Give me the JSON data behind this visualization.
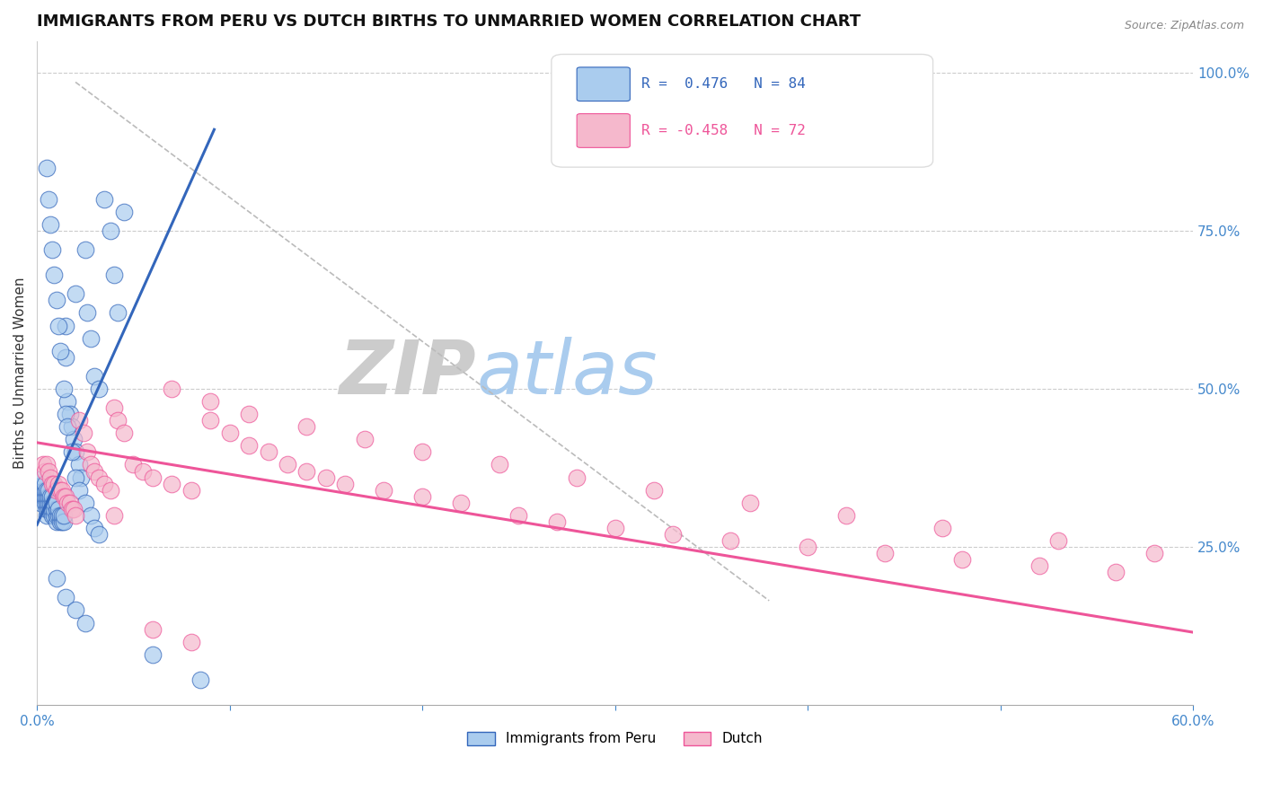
{
  "title": "IMMIGRANTS FROM PERU VS DUTCH BIRTHS TO UNMARRIED WOMEN CORRELATION CHART",
  "source_text": "Source: ZipAtlas.com",
  "xlabel_label": "Immigrants from Peru",
  "ylabel_label": "Births to Unmarried Women",
  "x_min": 0.0,
  "x_max": 0.6,
  "y_min": 0.0,
  "y_max": 1.05,
  "y_ticks_right": [
    0.25,
    0.5,
    0.75,
    1.0
  ],
  "y_tick_labels_right": [
    "25.0%",
    "50.0%",
    "75.0%",
    "100.0%"
  ],
  "legend_r1": "R =  0.476",
  "legend_n1": "N = 84",
  "legend_r2": "R = -0.458",
  "legend_n2": "N = 72",
  "scatter_blue_color": "#aaccee",
  "scatter_pink_color": "#f5b8cc",
  "trend_blue_color": "#3366bb",
  "trend_pink_color": "#ee5599",
  "ref_line_color": "#bbbbbb",
  "grid_color": "#cccccc",
  "axis_color": "#4488cc",
  "title_color": "#111111",
  "legend_r_color": "#3366bb",
  "legend_r2_color": "#ee5599",
  "blue_scatter_x": [
    0.002,
    0.003,
    0.003,
    0.003,
    0.003,
    0.004,
    0.004,
    0.004,
    0.004,
    0.005,
    0.005,
    0.005,
    0.005,
    0.005,
    0.006,
    0.006,
    0.006,
    0.006,
    0.007,
    0.007,
    0.007,
    0.008,
    0.008,
    0.008,
    0.008,
    0.009,
    0.009,
    0.009,
    0.01,
    0.01,
    0.01,
    0.01,
    0.011,
    0.011,
    0.012,
    0.012,
    0.013,
    0.013,
    0.014,
    0.014,
    0.015,
    0.015,
    0.016,
    0.017,
    0.018,
    0.019,
    0.02,
    0.02,
    0.022,
    0.023,
    0.025,
    0.026,
    0.028,
    0.03,
    0.032,
    0.035,
    0.038,
    0.04,
    0.042,
    0.045,
    0.005,
    0.006,
    0.007,
    0.008,
    0.009,
    0.01,
    0.011,
    0.012,
    0.014,
    0.015,
    0.016,
    0.018,
    0.02,
    0.022,
    0.025,
    0.028,
    0.03,
    0.032,
    0.01,
    0.015,
    0.02,
    0.025,
    0.06,
    0.085
  ],
  "blue_scatter_y": [
    0.32,
    0.33,
    0.34,
    0.35,
    0.36,
    0.32,
    0.33,
    0.34,
    0.35,
    0.3,
    0.31,
    0.32,
    0.33,
    0.34,
    0.31,
    0.32,
    0.33,
    0.34,
    0.31,
    0.32,
    0.33,
    0.3,
    0.31,
    0.32,
    0.33,
    0.3,
    0.31,
    0.32,
    0.29,
    0.3,
    0.31,
    0.32,
    0.3,
    0.31,
    0.29,
    0.3,
    0.29,
    0.3,
    0.29,
    0.3,
    0.55,
    0.6,
    0.48,
    0.46,
    0.44,
    0.42,
    0.4,
    0.65,
    0.38,
    0.36,
    0.72,
    0.62,
    0.58,
    0.52,
    0.5,
    0.8,
    0.75,
    0.68,
    0.62,
    0.78,
    0.85,
    0.8,
    0.76,
    0.72,
    0.68,
    0.64,
    0.6,
    0.56,
    0.5,
    0.46,
    0.44,
    0.4,
    0.36,
    0.34,
    0.32,
    0.3,
    0.28,
    0.27,
    0.2,
    0.17,
    0.15,
    0.13,
    0.08,
    0.04
  ],
  "pink_scatter_x": [
    0.003,
    0.004,
    0.005,
    0.006,
    0.007,
    0.008,
    0.009,
    0.01,
    0.011,
    0.012,
    0.013,
    0.014,
    0.015,
    0.016,
    0.017,
    0.018,
    0.019,
    0.02,
    0.022,
    0.024,
    0.026,
    0.028,
    0.03,
    0.032,
    0.035,
    0.038,
    0.04,
    0.042,
    0.045,
    0.05,
    0.055,
    0.06,
    0.07,
    0.08,
    0.09,
    0.1,
    0.11,
    0.12,
    0.13,
    0.14,
    0.15,
    0.16,
    0.18,
    0.2,
    0.22,
    0.25,
    0.27,
    0.3,
    0.33,
    0.36,
    0.4,
    0.44,
    0.48,
    0.52,
    0.56,
    0.07,
    0.09,
    0.11,
    0.14,
    0.17,
    0.2,
    0.24,
    0.28,
    0.32,
    0.37,
    0.42,
    0.47,
    0.53,
    0.58,
    0.04,
    0.06,
    0.08
  ],
  "pink_scatter_y": [
    0.38,
    0.37,
    0.38,
    0.37,
    0.36,
    0.35,
    0.35,
    0.34,
    0.35,
    0.34,
    0.34,
    0.33,
    0.33,
    0.32,
    0.32,
    0.31,
    0.31,
    0.3,
    0.45,
    0.43,
    0.4,
    0.38,
    0.37,
    0.36,
    0.35,
    0.34,
    0.47,
    0.45,
    0.43,
    0.38,
    0.37,
    0.36,
    0.35,
    0.34,
    0.45,
    0.43,
    0.41,
    0.4,
    0.38,
    0.37,
    0.36,
    0.35,
    0.34,
    0.33,
    0.32,
    0.3,
    0.29,
    0.28,
    0.27,
    0.26,
    0.25,
    0.24,
    0.23,
    0.22,
    0.21,
    0.5,
    0.48,
    0.46,
    0.44,
    0.42,
    0.4,
    0.38,
    0.36,
    0.34,
    0.32,
    0.3,
    0.28,
    0.26,
    0.24,
    0.3,
    0.12,
    0.1
  ],
  "blue_trend_x": [
    0.0,
    0.092
  ],
  "blue_trend_y": [
    0.285,
    0.91
  ],
  "pink_trend_x": [
    0.0,
    0.6
  ],
  "pink_trend_y": [
    0.415,
    0.115
  ],
  "ref_line_x": [
    0.02,
    0.38
  ],
  "ref_line_y": [
    0.985,
    0.165
  ]
}
